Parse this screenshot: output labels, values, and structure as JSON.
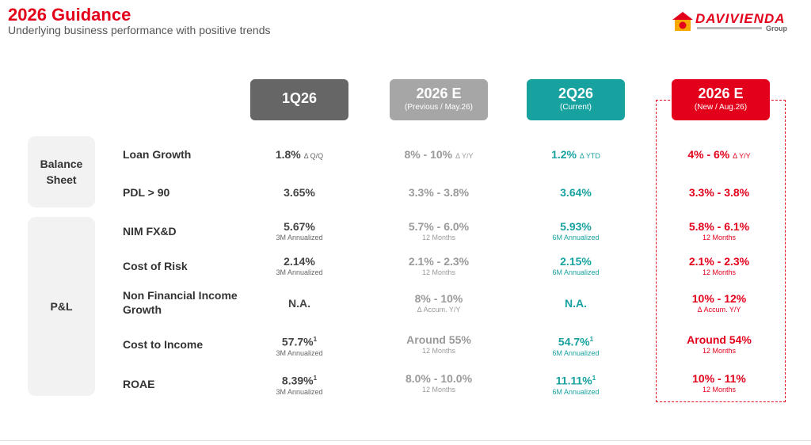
{
  "header": {
    "title": "2026 Guidance",
    "subtitle": "Underlying business performance with positive trends",
    "logo": {
      "text": "DAVIVIENDA",
      "group": "Group",
      "colors": {
        "primary": "#e3001b"
      }
    }
  },
  "columns": [
    {
      "title": "1Q26",
      "subtitle": "",
      "color": "#666666"
    },
    {
      "title": "2026 E",
      "subtitle": "(Previous / May.26)",
      "color": "#a6a6a6"
    },
    {
      "title": "2Q26",
      "subtitle": "(Current)",
      "color": "#17a2a0"
    },
    {
      "title": "2026 E",
      "subtitle": "(New / Aug.26)",
      "color": "#e3001b"
    }
  ],
  "categories": {
    "balance_sheet": "Balance Sheet",
    "pl": "P&L"
  },
  "rows": [
    {
      "label": "Loan Growth",
      "cells": [
        {
          "value": "1.8%",
          "delta": "Δ Q/Q",
          "note": ""
        },
        {
          "value": "8% - 10%",
          "delta": "Δ Y/Y",
          "note": ""
        },
        {
          "value": "1.2%",
          "delta": "Δ YTD",
          "note": ""
        },
        {
          "value": "4% - 6%",
          "delta": "Δ Y/Y",
          "note": ""
        }
      ]
    },
    {
      "label": "PDL > 90",
      "cells": [
        {
          "value": "3.65%",
          "note": ""
        },
        {
          "value": "3.3% - 3.8%",
          "note": ""
        },
        {
          "value": "3.64%",
          "note": ""
        },
        {
          "value": "3.3% - 3.8%",
          "note": ""
        }
      ]
    },
    {
      "label": "NIM FX&D",
      "cells": [
        {
          "value": "5.67%",
          "note": "3M Annualized"
        },
        {
          "value": "5.7% - 6.0%",
          "note": "12 Months"
        },
        {
          "value": "5.93%",
          "note": "6M Annualized"
        },
        {
          "value": "5.8% - 6.1%",
          "note": "12 Months"
        }
      ]
    },
    {
      "label": "Cost of Risk",
      "cells": [
        {
          "value": "2.14%",
          "note": "3M Annualized"
        },
        {
          "value": "2.1% - 2.3%",
          "note": "12 Months"
        },
        {
          "value": "2.15%",
          "note": "6M Annualized"
        },
        {
          "value": "2.1% - 2.3%",
          "note": "12 Months"
        }
      ]
    },
    {
      "label": "Non Financial Income Growth",
      "cells": [
        {
          "value": "N.A.",
          "note": ""
        },
        {
          "value": "8% - 10%",
          "note": "Δ Accum. Y/Y"
        },
        {
          "value": "N.A.",
          "note": ""
        },
        {
          "value": "10% - 12%",
          "note": "Δ Accum. Y/Y"
        }
      ]
    },
    {
      "label": "Cost to Income",
      "cells": [
        {
          "value": "57.7%",
          "sup": "1",
          "note": "3M Annualized"
        },
        {
          "value": "Around 55%",
          "note": "12 Months"
        },
        {
          "value": "54.7%",
          "sup": "1",
          "note": "6M Annualized"
        },
        {
          "value": "Around 54%",
          "note": "12 Months"
        }
      ]
    },
    {
      "label": "ROAE",
      "cells": [
        {
          "value": "8.39%",
          "sup": "1",
          "note": "3M Annualized"
        },
        {
          "value": "8.0% - 10.0%",
          "note": "12 Months"
        },
        {
          "value": "11.11%",
          "sup": "1",
          "note": "6M Annualized"
        },
        {
          "value": "10% - 11%",
          "note": "12 Months"
        }
      ]
    }
  ]
}
